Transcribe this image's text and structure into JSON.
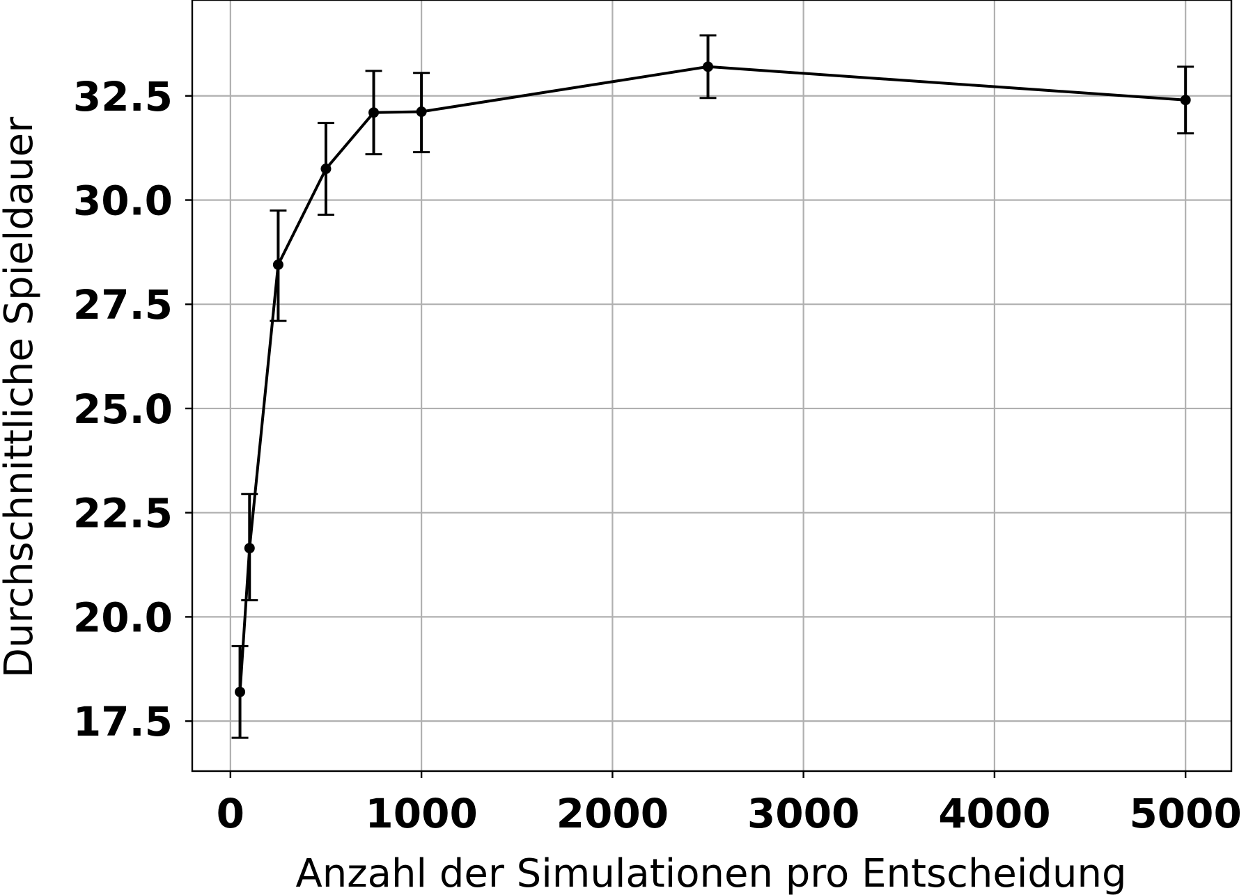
{
  "chart_data": {
    "type": "line",
    "title": "",
    "xlabel": "Anzahl der Simulationen pro Entscheidung",
    "ylabel": "Durchschnittliche Spieldauer",
    "xlim": [
      -200,
      5240
    ],
    "ylim": [
      16.3,
      34.8
    ],
    "grid": true,
    "x_ticks": [
      0,
      1000,
      2000,
      3000,
      4000,
      5000
    ],
    "x_tick_labels": [
      "0",
      "1000",
      "2000",
      "3000",
      "4000",
      "5000"
    ],
    "y_ticks": [
      17.5,
      20.0,
      22.5,
      25.0,
      27.5,
      30.0,
      32.5
    ],
    "y_tick_labels": [
      "17.5",
      "20.0",
      "22.5",
      "25.0",
      "27.5",
      "30.0",
      "32.5"
    ],
    "series": [
      {
        "x": [
          50,
          100,
          250,
          500,
          750,
          1000,
          2500,
          5000
        ],
        "y": [
          18.2,
          21.65,
          28.45,
          30.75,
          32.1,
          32.12,
          33.2,
          32.4
        ],
        "yerr_low": [
          17.1,
          20.4,
          27.1,
          29.65,
          31.1,
          31.15,
          32.45,
          31.6
        ],
        "yerr_high": [
          19.3,
          22.95,
          29.75,
          31.85,
          33.1,
          33.05,
          33.95,
          33.2
        ],
        "color": "#000000"
      }
    ]
  }
}
